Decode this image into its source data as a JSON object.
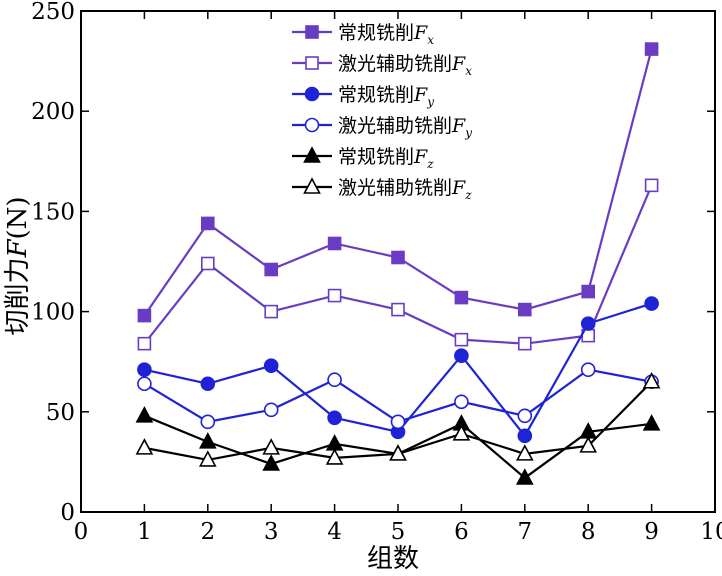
{
  "chart_data": {
    "type": "line",
    "xlabel": "组数",
    "ylabel_prefix": "切削力",
    "ylabel_var": "F",
    "ylabel_suffix": "(N)",
    "xlim": [
      0,
      10
    ],
    "ylim": [
      0,
      250
    ],
    "xticks": [
      0,
      1,
      2,
      3,
      4,
      5,
      6,
      7,
      8,
      9,
      10
    ],
    "yticks": [
      0,
      50,
      100,
      150,
      200,
      250
    ],
    "grid": false,
    "legend_position": "top-center",
    "x": [
      1,
      2,
      3,
      4,
      5,
      6,
      7,
      8,
      9
    ],
    "series": [
      {
        "name": "常规铣削",
        "var": "F",
        "sub": "x",
        "color": "#6a3cc4",
        "marker": "square",
        "filled": true,
        "values": [
          98,
          144,
          121,
          134,
          127,
          107,
          101,
          110,
          231
        ]
      },
      {
        "name": "激光辅助铣削",
        "var": "F",
        "sub": "x",
        "color": "#6a3cc4",
        "marker": "square",
        "filled": false,
        "values": [
          84,
          124,
          100,
          108,
          101,
          86,
          84,
          88,
          163
        ]
      },
      {
        "name": "常规铣削",
        "var": "F",
        "sub": "y",
        "color": "#1f23d6",
        "marker": "circle",
        "filled": true,
        "values": [
          71,
          64,
          73,
          47,
          40,
          78,
          38,
          94,
          104
        ]
      },
      {
        "name": "激光辅助铣削",
        "var": "F",
        "sub": "y",
        "color": "#1f23d6",
        "marker": "circle",
        "filled": false,
        "values": [
          64,
          45,
          51,
          66,
          45,
          55,
          48,
          71,
          65
        ]
      },
      {
        "name": "常规铣削",
        "var": "F",
        "sub": "z",
        "color": "#000000",
        "marker": "triangle",
        "filled": true,
        "values": [
          48,
          35,
          24,
          34,
          29,
          44,
          17,
          40,
          44
        ]
      },
      {
        "name": "激光辅助铣削",
        "var": "F",
        "sub": "z",
        "color": "#000000",
        "marker": "triangle",
        "filled": false,
        "values": [
          32,
          26,
          32,
          27,
          29,
          39,
          29,
          33,
          65
        ]
      }
    ]
  }
}
